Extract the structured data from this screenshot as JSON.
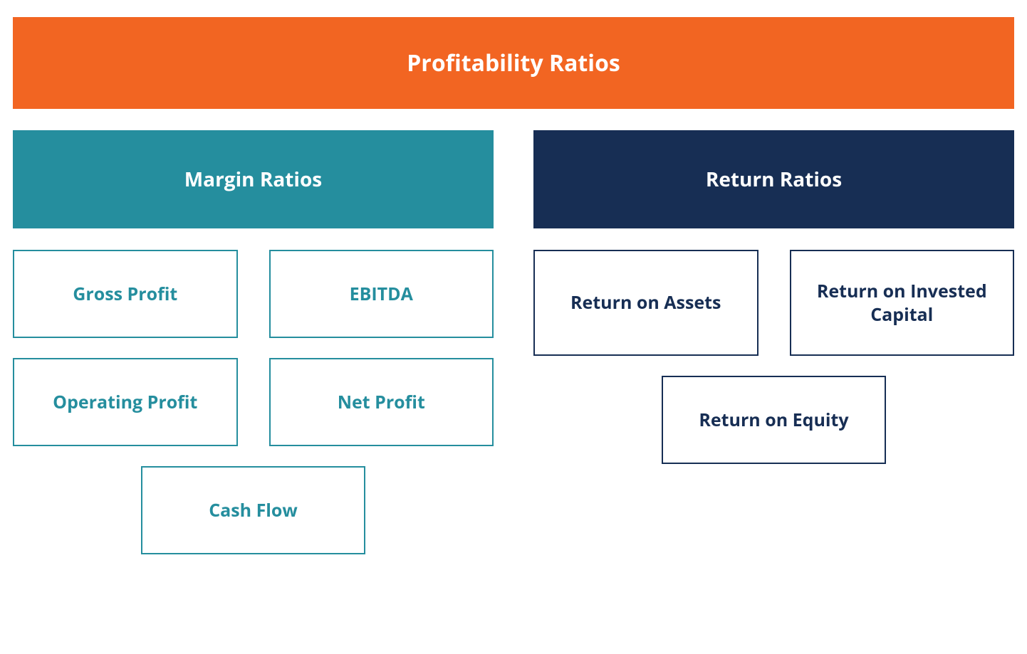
{
  "colors": {
    "header_bg": "#f26522",
    "header_text": "#ffffff",
    "left_category_bg": "#258e9e",
    "right_category_bg": "#172e54",
    "page_bg": "#ffffff"
  },
  "typography": {
    "main_title_fontsize": 32,
    "category_title_fontsize": 28,
    "item_fontsize": 25,
    "font_weight": 700
  },
  "layout": {
    "type": "tree",
    "columns": 2,
    "gap_between_columns": 56,
    "item_gap_vertical": 28,
    "item_gap_horizontal": 44
  },
  "header": {
    "title": "Profitability Ratios"
  },
  "categories": [
    {
      "title": "Margin Ratios",
      "side": "left",
      "items": [
        {
          "label": "Gross Profit"
        },
        {
          "label": "EBITDA"
        },
        {
          "label": "Operating Profit"
        },
        {
          "label": "Net Profit"
        },
        {
          "label": "Cash Flow",
          "centered": true
        }
      ]
    },
    {
      "title": "Return Ratios",
      "side": "right",
      "items": [
        {
          "label": "Return on Assets"
        },
        {
          "label": "Return on Invested Capital"
        },
        {
          "label": "Return on Equity",
          "centered": true
        }
      ]
    }
  ]
}
